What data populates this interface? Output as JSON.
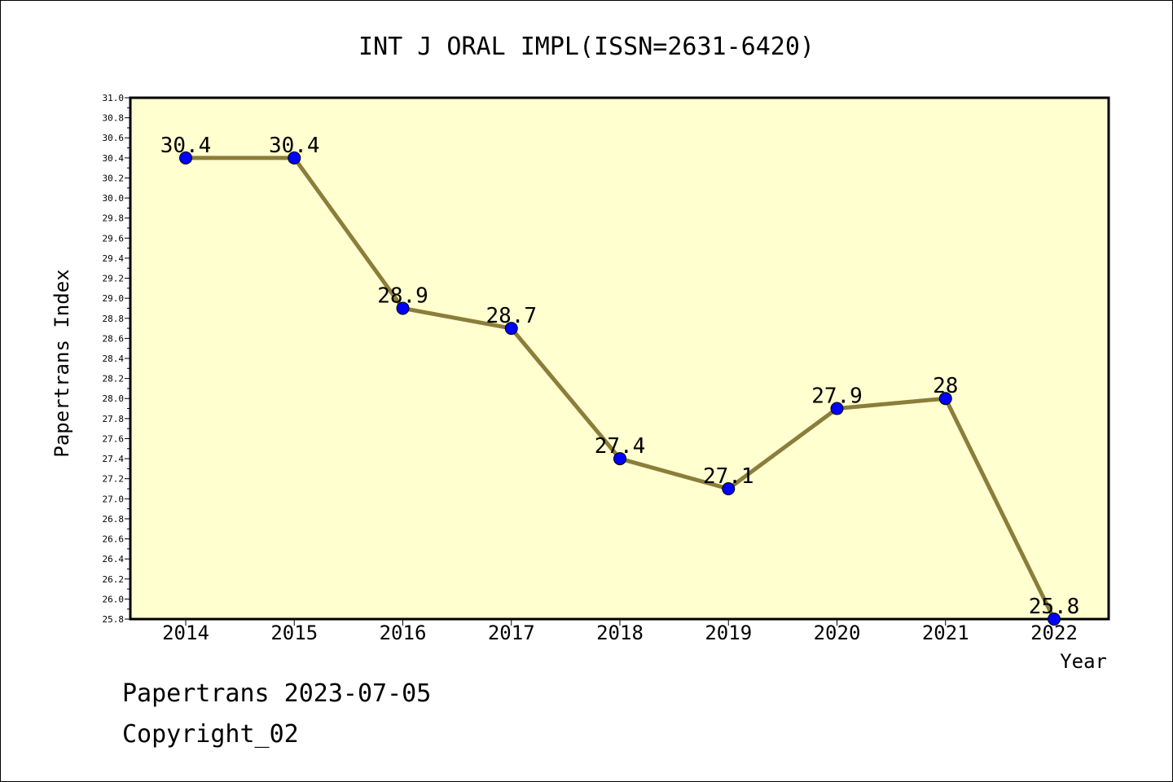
{
  "chart_data": {
    "type": "line",
    "title": "INT J ORAL IMPL(ISSN=2631-6420)",
    "xlabel": "Year",
    "ylabel": "Papertrans Index",
    "categories": [
      "2014",
      "2015",
      "2016",
      "2017",
      "2018",
      "2019",
      "2020",
      "2021",
      "2022"
    ],
    "series": [
      {
        "values": [
          30.4,
          30.4,
          28.9,
          28.7,
          27.4,
          27.1,
          27.9,
          28.0,
          25.8
        ],
        "data_labels": [
          "30.4",
          "30.4",
          "28.9",
          "28.7",
          "27.4",
          "27.1",
          "27.9",
          "28",
          "25.8"
        ]
      }
    ],
    "ylim": [
      25.8,
      31.0
    ],
    "yticks": [
      "25.8",
      "26.0",
      "26.2",
      "26.4",
      "26.6",
      "26.8",
      "27.0",
      "27.2",
      "27.4",
      "27.6",
      "27.8",
      "28.0",
      "28.2",
      "28.4",
      "28.6",
      "28.8",
      "29.0",
      "29.2",
      "29.4",
      "29.6",
      "29.8",
      "30.0",
      "30.2",
      "30.4",
      "30.6",
      "30.8",
      "31.0"
    ],
    "grid": false,
    "colors": {
      "plot_background": "#ffffd0",
      "line": "#8b7d3a",
      "marker": "#0000ff"
    }
  },
  "footer": {
    "line1": "Papertrans 2023-07-05",
    "line2": "Copyright_02"
  }
}
